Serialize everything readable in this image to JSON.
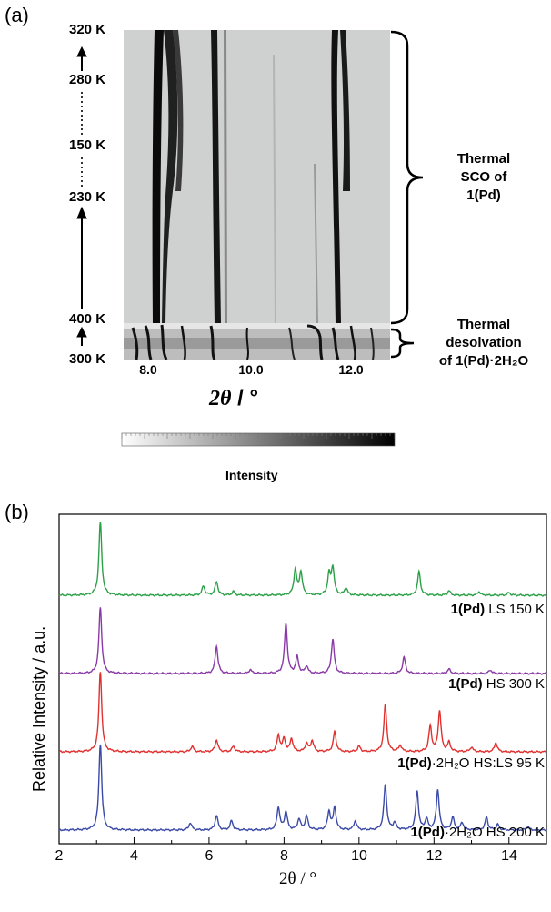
{
  "panel_a": {
    "label": "(a)",
    "temps": [
      "320 K",
      "280 K",
      "150 K",
      "230 K",
      "400 K",
      "300 K"
    ],
    "x_ticks": [
      "8.0",
      "10.0",
      "12.0"
    ],
    "x_title_symbol": "2θ",
    "x_title_unit": " / °",
    "bracket_upper_text": [
      "Thermal",
      "SCO of",
      "1(Pd)"
    ],
    "bracket_lower_text": [
      "Thermal",
      "desolvation",
      "of 1(Pd)·2H₂O"
    ],
    "colorbar_label": "Intensity"
  },
  "panel_b": {
    "label": "(b)",
    "labels": [
      {
        "bold": "1(Pd)",
        "text": " LS 150 K"
      },
      {
        "bold": "1(Pd)",
        "text": " HS 300 K"
      },
      {
        "bold": "1(Pd)",
        "text": "·2H₂O HS:LS 95 K"
      },
      {
        "bold": "1(Pd)",
        "text": "·2H₂O HS 200 K"
      }
    ],
    "x_ticks": [
      "2",
      "4",
      "6",
      "8",
      "10",
      "12",
      "14"
    ],
    "ylabel": "Relative Intensity / a.u.",
    "xlabel": "2θ / °"
  },
  "chart_data": [
    {
      "type": "heatmap",
      "title": "",
      "xlabel": "2θ / °",
      "xlim": [
        7.5,
        12.9
      ],
      "x_ticks": [
        8.0,
        10.0,
        12.0
      ],
      "temperature_ramp": [
        "320 K",
        "280 K",
        "150 K",
        "230 K",
        "400 K",
        "300 K"
      ],
      "bands_2theta": [
        8.05,
        8.4,
        9.3,
        11.5,
        11.65
      ],
      "annotations": [
        "Thermal SCO of 1(Pd)",
        "Thermal desolvation of 1(Pd)·2H₂O"
      ]
    },
    {
      "type": "line",
      "xlabel": "2θ / °",
      "ylabel": "Relative Intensity / a.u.",
      "xlim": [
        2,
        15
      ],
      "series": [
        {
          "name": "1(Pd) LS 150 K",
          "color": "#2ca048",
          "peaks": [
            [
              3.1,
              80
            ],
            [
              5.85,
              10
            ],
            [
              6.2,
              15
            ],
            [
              6.65,
              4
            ],
            [
              8.3,
              28
            ],
            [
              8.45,
              25
            ],
            [
              9.2,
              22
            ],
            [
              9.3,
              30
            ],
            [
              9.65,
              8
            ],
            [
              11.6,
              26
            ],
            [
              12.4,
              5
            ],
            [
              13.2,
              4
            ],
            [
              14.0,
              3
            ]
          ]
        },
        {
          "name": "1(Pd) HS 300 K",
          "color": "#8a3aa6",
          "peaks": [
            [
              3.1,
              72
            ],
            [
              6.2,
              30
            ],
            [
              7.1,
              4
            ],
            [
              8.05,
              55
            ],
            [
              8.35,
              18
            ],
            [
              8.6,
              8
            ],
            [
              9.3,
              38
            ],
            [
              11.2,
              18
            ],
            [
              12.4,
              5
            ],
            [
              13.5,
              4
            ]
          ]
        },
        {
          "name": "1(Pd)·2H2O HS:LS 95 K",
          "color": "#e0312f",
          "peaks": [
            [
              3.1,
              88
            ],
            [
              5.55,
              6
            ],
            [
              6.2,
              13
            ],
            [
              6.65,
              6
            ],
            [
              7.85,
              18
            ],
            [
              8.0,
              14
            ],
            [
              8.2,
              14
            ],
            [
              8.6,
              9
            ],
            [
              8.75,
              12
            ],
            [
              9.35,
              22
            ],
            [
              10.0,
              6
            ],
            [
              10.7,
              52
            ],
            [
              11.1,
              7
            ],
            [
              11.9,
              28
            ],
            [
              12.15,
              45
            ],
            [
              12.4,
              10
            ],
            [
              13.0,
              5
            ],
            [
              13.65,
              10
            ]
          ]
        },
        {
          "name": "1(Pd)·2H2O HS 200 K",
          "color": "#3a4aa6",
          "peaks": [
            [
              3.1,
              95
            ],
            [
              5.5,
              8
            ],
            [
              6.2,
              16
            ],
            [
              6.6,
              10
            ],
            [
              7.85,
              25
            ],
            [
              8.05,
              20
            ],
            [
              8.4,
              12
            ],
            [
              8.6,
              15
            ],
            [
              9.2,
              20
            ],
            [
              9.35,
              24
            ],
            [
              9.9,
              10
            ],
            [
              10.7,
              50
            ],
            [
              10.95,
              8
            ],
            [
              11.55,
              42
            ],
            [
              11.8,
              12
            ],
            [
              12.1,
              44
            ],
            [
              12.5,
              14
            ],
            [
              12.75,
              8
            ],
            [
              13.4,
              14
            ],
            [
              13.7,
              6
            ],
            [
              14.5,
              4
            ]
          ]
        }
      ]
    }
  ]
}
